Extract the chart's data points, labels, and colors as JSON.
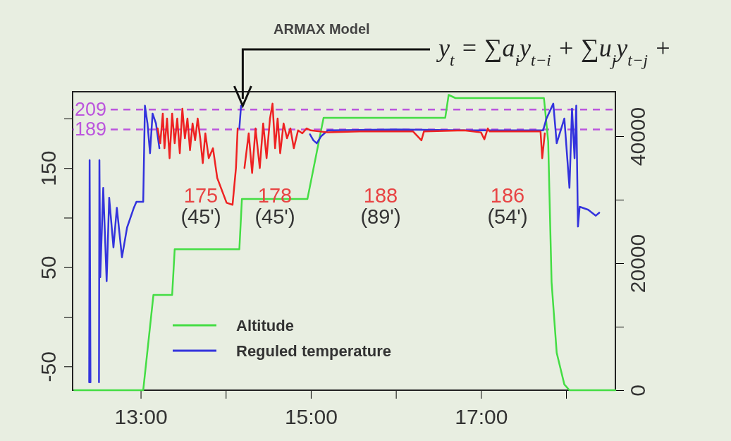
{
  "chart_data": {
    "type": "line",
    "xlim": [
      12.2,
      18.58
    ],
    "xticks": [
      {
        "value": 13,
        "label": "13:00"
      },
      {
        "value": 14,
        "label": null
      },
      {
        "value": 15,
        "label": "15:00"
      },
      {
        "value": 16,
        "label": null
      },
      {
        "value": 17,
        "label": "17:00"
      },
      {
        "value": 18,
        "label": null
      }
    ],
    "ylim": [
      -74,
      227
    ],
    "yticks": [
      -50,
      {
        "value": 0,
        "label": null
      },
      50,
      {
        "value": 100,
        "label": null
      },
      150,
      {
        "value": 200,
        "label": null
      }
    ],
    "y2lim": [
      0,
      47000
    ],
    "y2ticks": [
      0,
      {
        "value": 10000,
        "label": null
      },
      20000,
      {
        "value": 30000,
        "label": null
      },
      40000
    ],
    "grid": false,
    "legend": "bottom left",
    "line_style": "solid",
    "series": [
      {
        "name": "Altitude",
        "color": "#44dd44",
        "axis": "y2",
        "x": [
          12.22,
          13.03,
          13.15,
          13.37,
          13.4,
          14.16,
          14.19,
          14.96,
          15.15,
          16.58,
          16.62,
          16.7,
          17.74,
          17.79,
          17.83,
          17.89,
          17.98,
          18.04,
          18.58
        ],
        "values": [
          0,
          0,
          15000,
          15000,
          22200,
          22200,
          30100,
          30100,
          42900,
          42900,
          46500,
          46000,
          46000,
          39200,
          17000,
          5900,
          900,
          0,
          0
        ]
      },
      {
        "name": "Reguled temperature",
        "color": "#3333dd",
        "x": [
          12.395,
          12.4,
          12.41,
          12.45,
          12.51,
          12.515,
          12.525,
          12.56,
          12.6,
          12.63,
          12.68,
          12.72,
          12.78,
          12.84,
          12.92,
          12.95,
          13.03,
          13.05,
          13.08,
          13.11,
          13.14,
          13.18,
          13.22,
          13.23,
          14.15,
          14.16,
          14.18,
          14.19,
          14.99,
          15.03,
          15.07,
          15.12,
          15.2,
          16.0,
          16.8,
          17.73,
          17.77,
          17.85,
          17.89,
          17.98,
          18.04,
          18.07,
          18.1,
          18.12,
          18.14,
          18.16,
          18.26,
          18.35,
          18.39
        ],
        "values": [
          -66,
          158,
          -66,
          null,
          -66,
          158,
          40,
          130,
          36,
          120,
          70,
          110,
          60,
          90,
          110,
          116,
          116,
          213,
          195,
          165,
          205,
          195,
          170,
          null,
          null,
          190,
          213,
          null,
          184,
          178,
          175,
          182,
          188,
          189,
          188,
          188,
          200,
          215,
          175,
          200,
          130,
          210,
          160,
          213,
          91,
          111,
          108,
          102,
          105
        ]
      },
      {
        "color": "#ee2222",
        "x": [
          13.2,
          13.23,
          13.26,
          13.28,
          13.31,
          13.34,
          13.37,
          13.4,
          13.43,
          13.46,
          13.49,
          13.52,
          13.55,
          13.58,
          13.61,
          13.64,
          13.67,
          13.7,
          13.73,
          13.76,
          13.8,
          13.85,
          13.9,
          14.01,
          14.08,
          14.12,
          14.14,
          14.2,
          14.22,
          14.27,
          14.31,
          14.35,
          14.4,
          14.44,
          14.48,
          14.52,
          14.55,
          14.58,
          14.61,
          14.64,
          14.68,
          14.72,
          14.76,
          14.8,
          14.85,
          14.9,
          14.95,
          15.0,
          15.2,
          15.6,
          16.2,
          16.3,
          16.33,
          16.8,
          17.0,
          17.04,
          17.08,
          17.1,
          17.7,
          17.72,
          17.75
        ],
        "values": [
          190,
          175,
          205,
          170,
          200,
          160,
          205,
          175,
          200,
          165,
          210,
          180,
          200,
          168,
          195,
          178,
          200,
          180,
          155,
          185,
          160,
          170,
          140,
          115,
          113,
          150,
          190,
          null,
          150,
          185,
          145,
          190,
          150,
          195,
          160,
          200,
          215,
          170,
          200,
          165,
          195,
          180,
          190,
          170,
          188,
          185,
          190,
          188,
          186,
          187,
          187,
          178,
          187,
          188,
          186,
          179,
          190,
          187,
          187,
          160,
          185
        ]
      }
    ],
    "ref_lines": [
      {
        "axis": "y",
        "value": 209,
        "label": "209",
        "color": "#bb55dd",
        "line_style": "dashed"
      },
      {
        "axis": "y",
        "value": 189,
        "label": "189",
        "color": "#bb55dd",
        "line_style": "dashed"
      }
    ],
    "annotations": [
      "ARMAX Model",
      "y$_{t}$ = ∑a$_{i}$y$_{t−i}$ + ∑u$_{j}$y$_{t−j}$ +",
      "175\n(45')",
      "178\n(45')",
      "188\n(89')",
      "186\n(54')"
    ]
  }
}
